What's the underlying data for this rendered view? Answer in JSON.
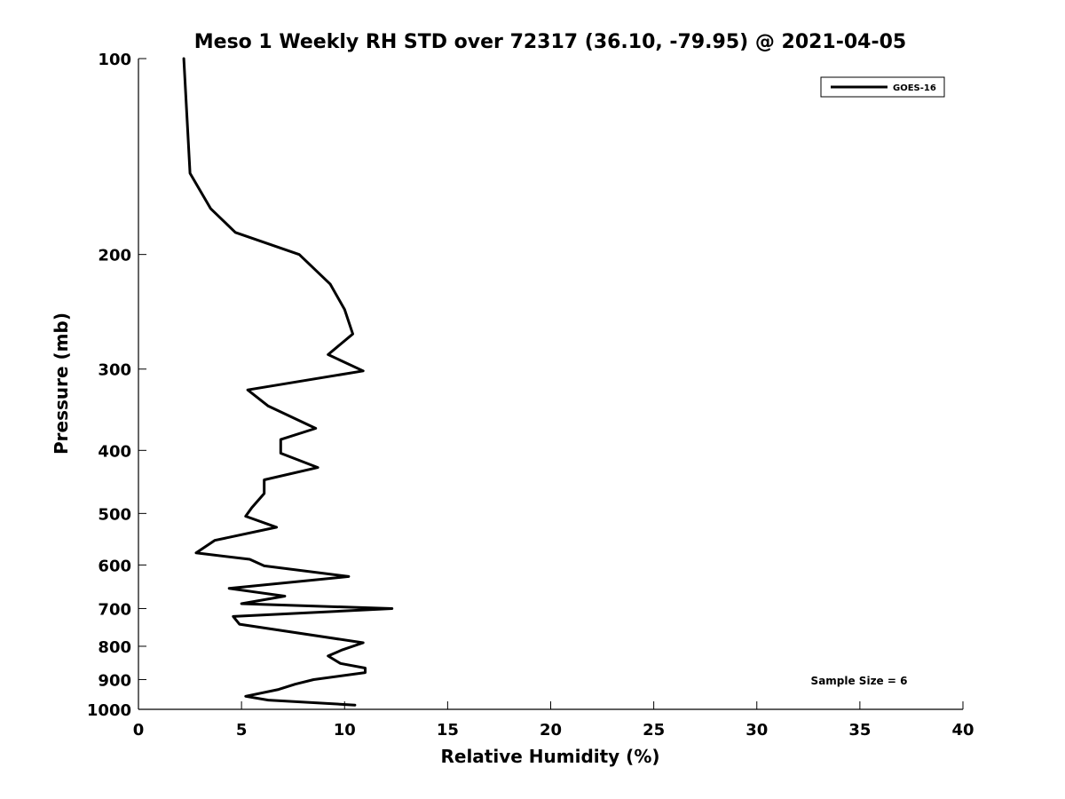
{
  "chart_data": {
    "type": "line",
    "title": "Meso 1 Weekly RH STD over 72317 (36.10, -79.95) @ 2021-04-05",
    "xlabel": "Relative Humidity (%)",
    "ylabel": "Pressure (mb)",
    "xlim": [
      0,
      40
    ],
    "ylim": [
      100,
      1000
    ],
    "y_scale": "log",
    "y_inverted": true,
    "grid": false,
    "x_ticks": [
      0,
      5,
      10,
      15,
      20,
      25,
      30,
      35,
      40
    ],
    "y_ticks": [
      100,
      200,
      300,
      400,
      500,
      600,
      700,
      800,
      900,
      1000
    ],
    "legend": {
      "placement": "top-right",
      "entries": [
        "GOES-16"
      ]
    },
    "annotation": "Sample Size = 6",
    "series": [
      {
        "name": "GOES-16",
        "color": "#000000",
        "x": [
          2.2,
          2.5,
          3.5,
          4.7,
          7.8,
          9.3,
          10.0,
          10.4,
          9.2,
          10.9,
          5.3,
          6.3,
          8.6,
          6.9,
          6.9,
          8.7,
          6.1,
          6.1,
          5.5,
          5.2,
          6.7,
          3.7,
          2.8,
          5.4,
          6.1,
          10.2,
          4.4,
          7.1,
          5.0,
          12.3,
          4.6,
          4.9,
          10.9,
          9.9,
          9.2,
          9.8,
          11.0,
          11.0,
          8.5,
          7.6,
          6.8,
          5.2,
          6.3,
          10.5
        ],
        "y": [
          100,
          150,
          170,
          185,
          200,
          222,
          243,
          265,
          285,
          302,
          323,
          342,
          370,
          385,
          404,
          425,
          444,
          466,
          490,
          505,
          525,
          550,
          575,
          588,
          602,
          625,
          652,
          670,
          688,
          700,
          720,
          740,
          790,
          810,
          828,
          850,
          864,
          878,
          900,
          915,
          932,
          955,
          968,
          985
        ]
      }
    ]
  }
}
